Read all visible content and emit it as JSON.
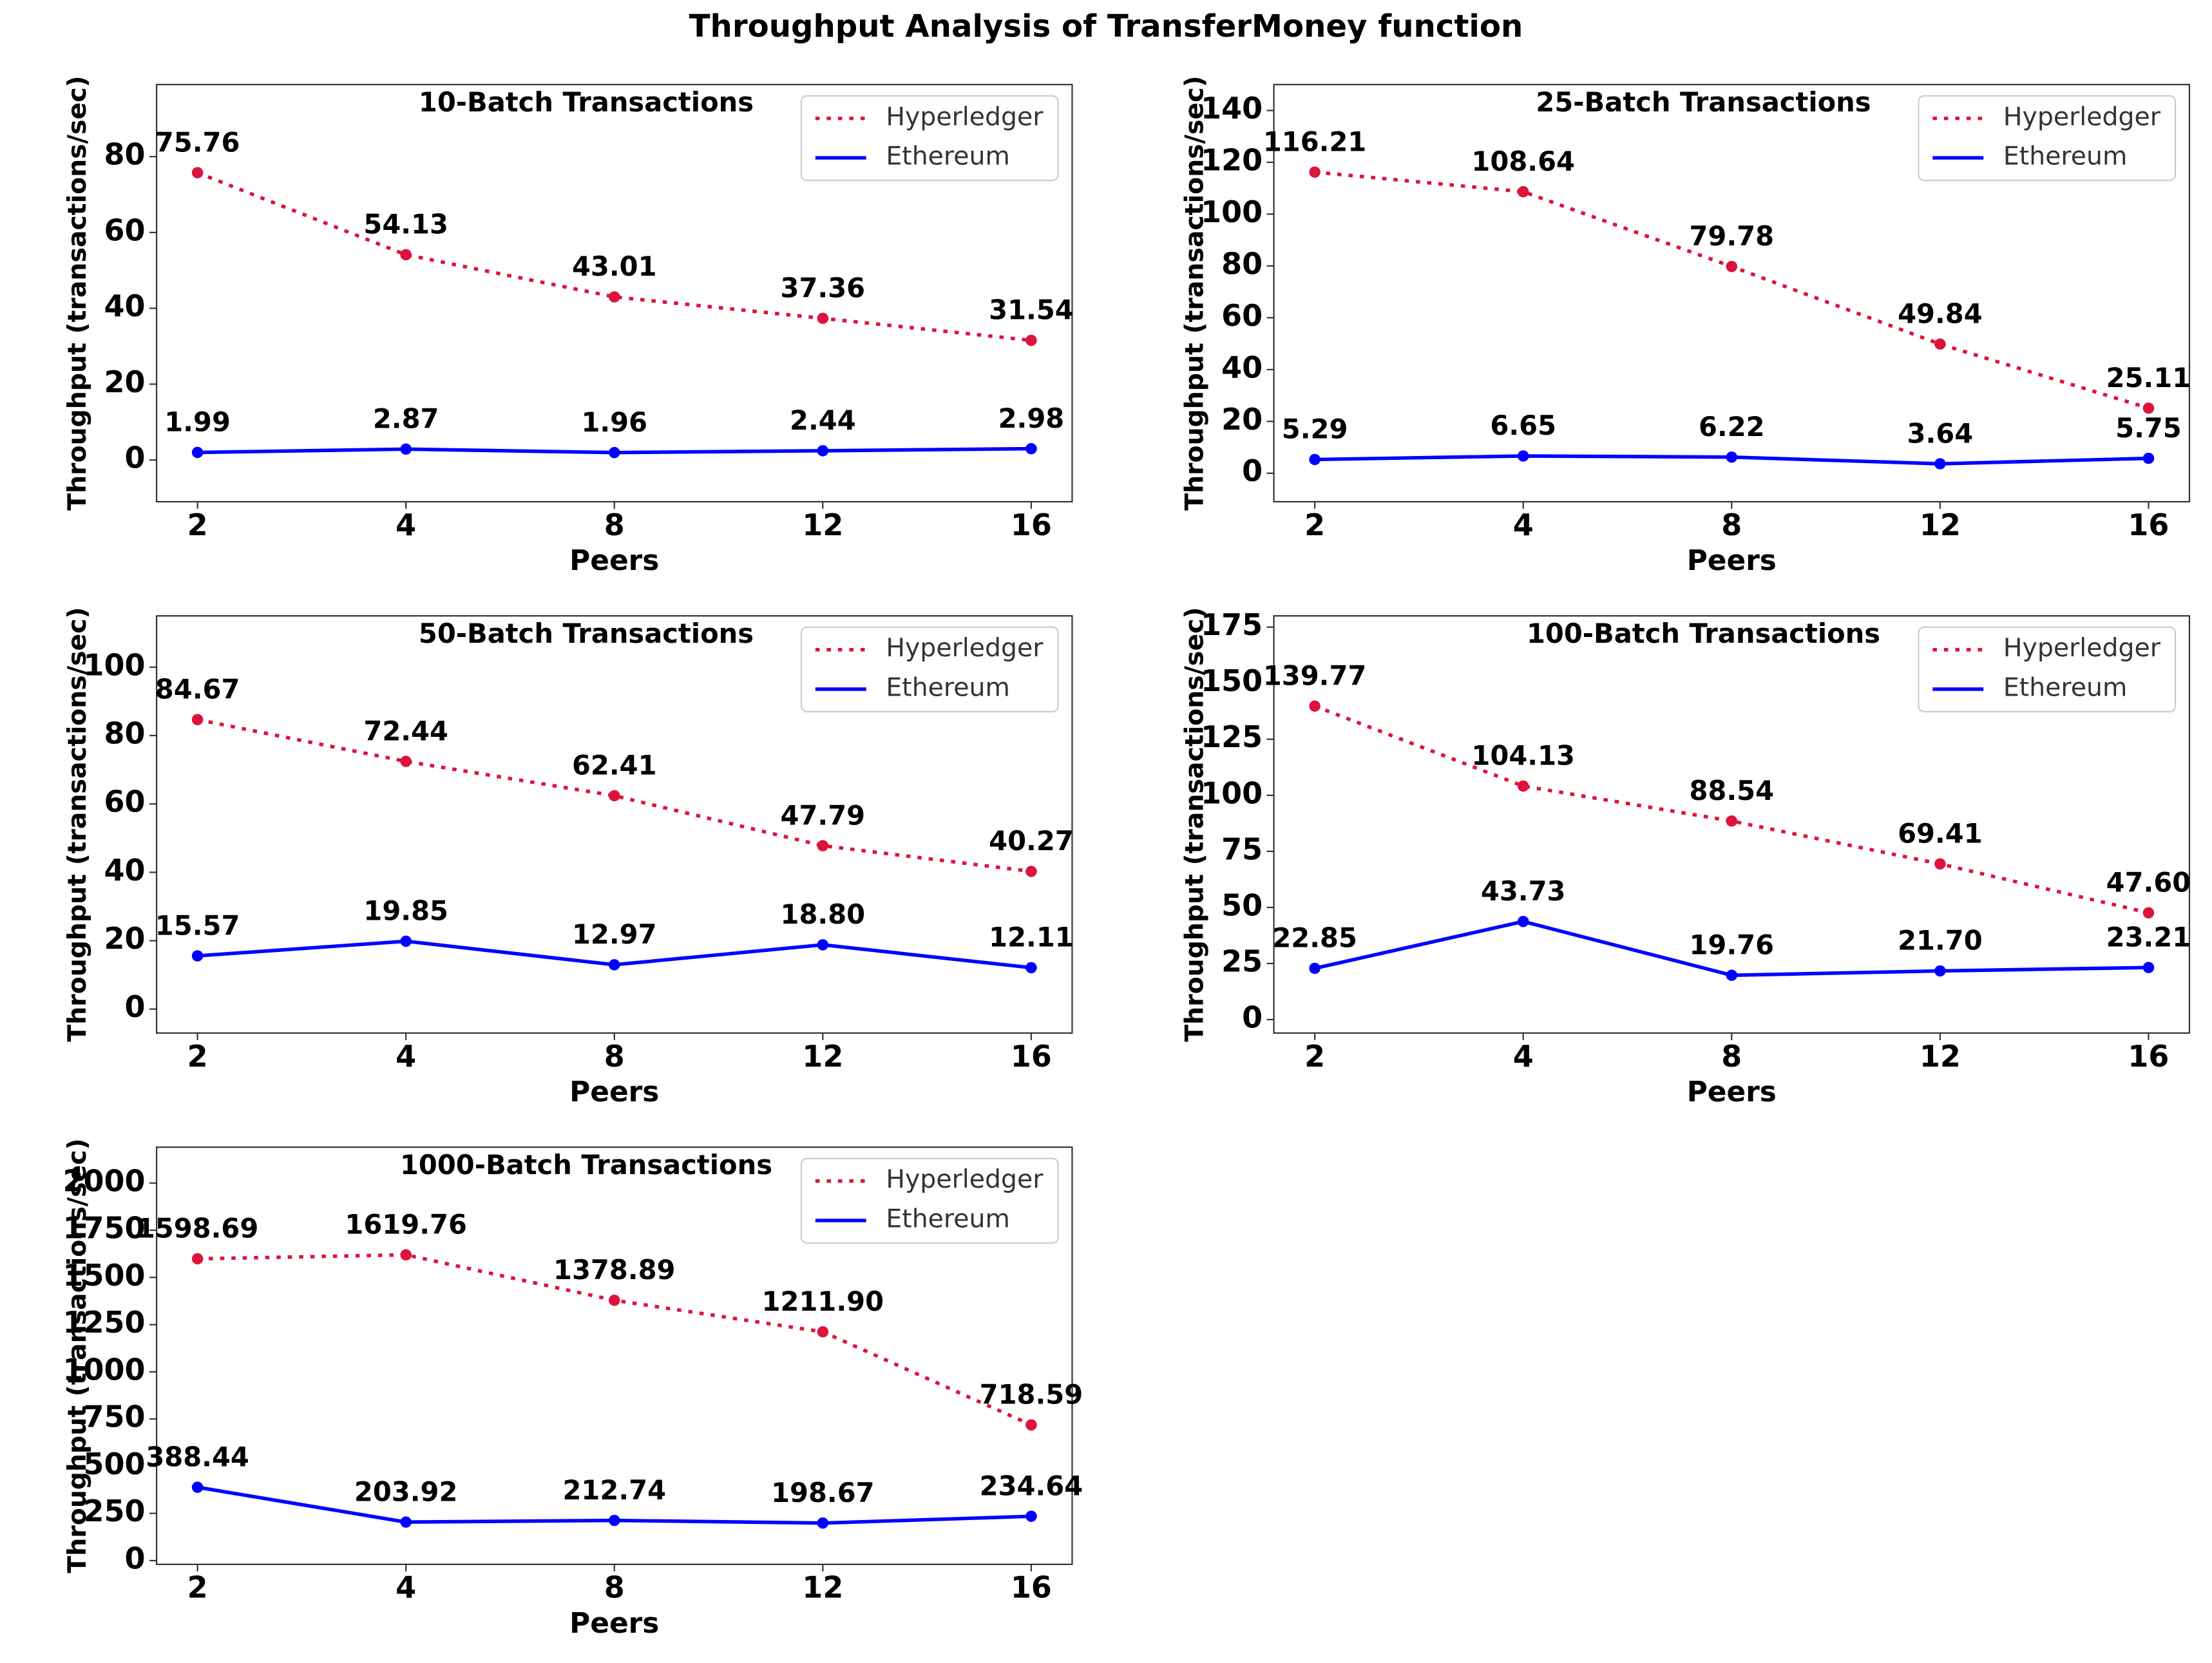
{
  "title": "Throughput Analysis of TransferMoney function",
  "chart_data": [
    {
      "type": "line",
      "title": "10-Batch Transactions",
      "xlabel": "Peers",
      "ylabel": "Throughput (transactions/sec)",
      "categories": [
        "2",
        "4",
        "8",
        "12",
        "16"
      ],
      "ylim": [
        -11,
        99
      ],
      "yticks": [
        0,
        20,
        40,
        60,
        80
      ],
      "legend": "upper right",
      "series": [
        {
          "name": "Hyperledger",
          "color": "#dc143c",
          "linestyle": "dotted",
          "values": [
            75.76,
            54.13,
            43.01,
            37.36,
            31.54
          ],
          "value_labels": [
            "75.76",
            "54.13",
            "43.01",
            "37.36",
            "31.54"
          ]
        },
        {
          "name": "Ethereum",
          "color": "#0000ff",
          "linestyle": "solid",
          "values": [
            1.99,
            2.87,
            1.96,
            2.44,
            2.98
          ],
          "value_labels": [
            "1.99",
            "2.87",
            "1.96",
            "2.44",
            "2.98"
          ]
        }
      ]
    },
    {
      "type": "line",
      "title": "25-Batch Transactions",
      "xlabel": "Peers",
      "ylabel": "Throughput (transactions/sec)",
      "categories": [
        "2",
        "4",
        "8",
        "12",
        "16"
      ],
      "ylim": [
        -11,
        150
      ],
      "yticks": [
        0,
        20,
        40,
        60,
        80,
        100,
        120,
        140
      ],
      "legend": "upper right",
      "series": [
        {
          "name": "Hyperledger",
          "color": "#dc143c",
          "linestyle": "dotted",
          "values": [
            116.21,
            108.64,
            79.78,
            49.84,
            25.11
          ],
          "value_labels": [
            "116.21",
            "108.64",
            "79.78",
            "49.84",
            "25.11"
          ]
        },
        {
          "name": "Ethereum",
          "color": "#0000ff",
          "linestyle": "solid",
          "values": [
            5.29,
            6.65,
            6.22,
            3.64,
            5.75
          ],
          "value_labels": [
            "5.29",
            "6.65",
            "6.22",
            "3.64",
            "5.75"
          ]
        }
      ]
    },
    {
      "type": "line",
      "title": "50-Batch Transactions",
      "xlabel": "Peers",
      "ylabel": "Throughput (transactions/sec)",
      "categories": [
        "2",
        "4",
        "8",
        "12",
        "16"
      ],
      "ylim": [
        -7,
        115
      ],
      "yticks": [
        0,
        20,
        40,
        60,
        80,
        100
      ],
      "legend": "upper right",
      "series": [
        {
          "name": "Hyperledger",
          "color": "#dc143c",
          "linestyle": "dotted",
          "values": [
            84.67,
            72.44,
            62.41,
            47.79,
            40.27
          ],
          "value_labels": [
            "84.67",
            "72.44",
            "62.41",
            "47.79",
            "40.27"
          ]
        },
        {
          "name": "Ethereum",
          "color": "#0000ff",
          "linestyle": "solid",
          "values": [
            15.57,
            19.85,
            12.97,
            18.8,
            12.11
          ],
          "value_labels": [
            "15.57",
            "19.85",
            "12.97",
            "18.80",
            "12.11"
          ]
        }
      ]
    },
    {
      "type": "line",
      "title": "100-Batch Transactions",
      "xlabel": "Peers",
      "ylabel": "Throughput (transactions/sec)",
      "categories": [
        "2",
        "4",
        "8",
        "12",
        "16"
      ],
      "ylim": [
        -6,
        180
      ],
      "yticks": [
        0,
        25,
        50,
        75,
        100,
        125,
        150,
        175
      ],
      "legend": "upper right",
      "series": [
        {
          "name": "Hyperledger",
          "color": "#dc143c",
          "linestyle": "dotted",
          "values": [
            139.77,
            104.13,
            88.54,
            69.41,
            47.6
          ],
          "value_labels": [
            "139.77",
            "104.13",
            "88.54",
            "69.41",
            "47.60"
          ]
        },
        {
          "name": "Ethereum",
          "color": "#0000ff",
          "linestyle": "solid",
          "values": [
            22.85,
            43.73,
            19.76,
            21.7,
            23.21
          ],
          "value_labels": [
            "22.85",
            "43.73",
            "19.76",
            "21.70",
            "23.21"
          ]
        }
      ]
    },
    {
      "type": "line",
      "title": "1000-Batch Transactions",
      "xlabel": "Peers",
      "ylabel": "Throughput (transactions/sec)",
      "categories": [
        "2",
        "4",
        "8",
        "12",
        "16"
      ],
      "ylim": [
        -20,
        2190
      ],
      "yticks": [
        0,
        250,
        500,
        750,
        1000,
        1250,
        1500,
        1750,
        2000
      ],
      "legend": "upper right",
      "series": [
        {
          "name": "Hyperledger",
          "color": "#dc143c",
          "linestyle": "dotted",
          "values": [
            1598.69,
            1619.76,
            1378.89,
            1211.9,
            718.59
          ],
          "value_labels": [
            "1598.69",
            "1619.76",
            "1378.89",
            "1211.90",
            "718.59"
          ]
        },
        {
          "name": "Ethereum",
          "color": "#0000ff",
          "linestyle": "solid",
          "values": [
            388.44,
            203.92,
            212.74,
            198.67,
            234.64
          ],
          "value_labels": [
            "388.44",
            "203.92",
            "212.74",
            "198.67",
            "234.64"
          ]
        }
      ]
    }
  ]
}
